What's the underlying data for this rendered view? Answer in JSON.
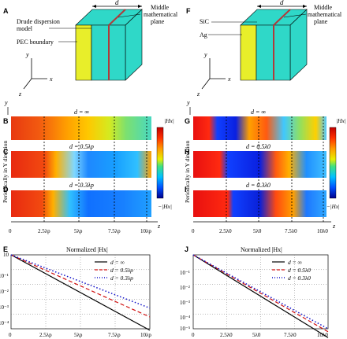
{
  "panels": {
    "A": "A",
    "B": "B",
    "C": "C",
    "D": "D",
    "E": "E",
    "F": "F",
    "G": "G",
    "H": "H",
    "I": "I",
    "J": "J"
  },
  "left": {
    "schematic": {
      "d": "d",
      "middle_plane": [
        "Middle",
        "mathematical",
        "plane"
      ],
      "drude": [
        "Drude dispersion",
        "model"
      ],
      "pec": "PEC boundary",
      "axis_y": "y",
      "axis_x": "x",
      "axis_z": "z"
    },
    "strips": {
      "ylabel": "Periodically in Y direction",
      "axis_y": "y",
      "axis_z": "z",
      "labels": [
        "d = ∞",
        "d = 0.5λp",
        "d = 0.3λp"
      ],
      "ticks": [
        "0",
        "2.5λp",
        "5λp",
        "7.5λp",
        "10λp"
      ],
      "colorbar_top": "|Hx|",
      "colorbar_bottom": "−|Hx|"
    },
    "plot": {
      "title": "Normalized |Hx|",
      "yticks": [
        "10",
        "10⁻¹",
        "10⁻²",
        "10⁻³",
        "10⁻⁴",
        "10⁻⁵"
      ],
      "xticks": [
        "0",
        "2.5λp",
        "5λp",
        "7.5λp",
        "10λp"
      ],
      "legend": [
        "d = ∞",
        "d = 0.5λp",
        "d = 0.3λp"
      ]
    }
  },
  "right": {
    "schematic": {
      "d": "d",
      "middle_plane": [
        "Middle",
        "mathematical",
        "plane"
      ],
      "sic": "SiC",
      "ag": "Ag",
      "axis_y": "y",
      "axis_x": "x",
      "axis_z": "z"
    },
    "strips": {
      "ylabel": "Periodically in Y direction",
      "axis_y": "y",
      "axis_z": "z",
      "labels": [
        "d = ∞",
        "d = 0.5λ0",
        "d = 0.3λ0"
      ],
      "ticks": [
        "0",
        "2.5λ0",
        "5λ0",
        "7.5λ0",
        "10λ0"
      ],
      "colorbar_top": "|Hx|",
      "colorbar_bottom": "−|Hx|"
    },
    "plot": {
      "title": "Normalized |Hx|",
      "yticks": [
        "10⁻¹",
        "10⁻²",
        "10⁻³",
        "10⁻⁴",
        "10⁻⁵"
      ],
      "xticks": [
        "0",
        "2.5λ0",
        "5λ0",
        "7.5λ0",
        "10λ0"
      ],
      "legend": [
        "d = ∞",
        "d = 0.5λ0",
        "d = 0.3λ0"
      ]
    }
  },
  "colors": {
    "slab_face": "#e8ee2a",
    "slab_side": "#d8e020",
    "metal": "#2fd8c8",
    "boundary": "#b13a3a",
    "black": "#000000",
    "red": "#d01010",
    "blue": "#1010c8"
  },
  "chart_data": [
    {
      "panel": "E",
      "type": "line",
      "title": "Normalized |Hx|",
      "x_ticks": [
        "0",
        "2.5λp",
        "5λp",
        "7.5λp",
        "10λp"
      ],
      "xlim": [
        0,
        10
      ],
      "ylim": [
        -5,
        0
      ],
      "y_scale": "log",
      "grid": true,
      "legend": "top-right",
      "series": [
        {
          "name": "d = ∞",
          "style": "solid",
          "color": "#000000",
          "x": [
            0,
            10
          ],
          "log10_y": [
            0,
            -5.1
          ]
        },
        {
          "name": "d = 0.5λp",
          "style": "dashed",
          "color": "#d01010",
          "x": [
            0,
            10
          ],
          "log10_y": [
            0,
            -4.2
          ]
        },
        {
          "name": "d = 0.3λp",
          "style": "dotted",
          "color": "#1010c8",
          "x": [
            0,
            10
          ],
          "log10_y": [
            0,
            -3.6
          ]
        }
      ]
    },
    {
      "panel": "J",
      "type": "line",
      "title": "Normalized |Hx|",
      "x_ticks": [
        "0",
        "2.5λ0",
        "5λ0",
        "7.5λ0",
        "10λ0"
      ],
      "xlim": [
        0,
        10
      ],
      "ylim": [
        -5,
        0
      ],
      "y_scale": "log",
      "grid": true,
      "legend": "top-right",
      "series": [
        {
          "name": "d = ∞",
          "style": "solid",
          "color": "#000000",
          "x": [
            0,
            10
          ],
          "log10_y": [
            0,
            -5.6
          ]
        },
        {
          "name": "d = 0.5λ0",
          "style": "dashed",
          "color": "#d01010",
          "x": [
            0,
            10
          ],
          "log10_y": [
            0,
            -5.2
          ]
        },
        {
          "name": "d = 0.3λ0",
          "style": "dotted",
          "color": "#1010c8",
          "x": [
            0,
            10
          ],
          "log10_y": [
            0,
            -5.0
          ]
        }
      ]
    }
  ]
}
